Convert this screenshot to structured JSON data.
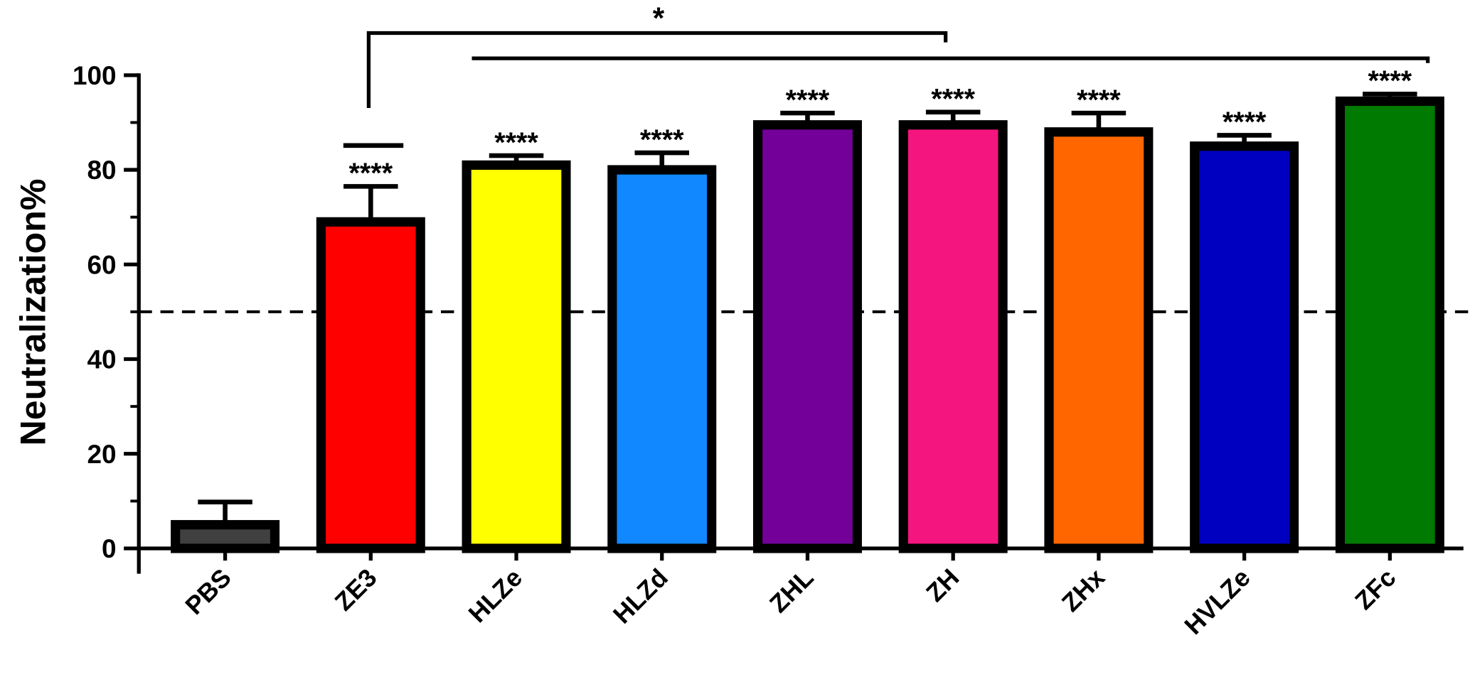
{
  "chart_data": {
    "type": "bar",
    "y_label": "Neutralization%",
    "categories": [
      "PBS",
      "ZE3",
      "HLZe",
      "HLZd",
      "ZHL",
      "ZH",
      "ZHx",
      "HVLZe",
      "ZFc"
    ],
    "values": [
      5,
      69,
      81,
      80,
      89.5,
      89.5,
      88,
      85,
      94.5
    ],
    "errors": [
      4.8,
      7.5,
      2,
      3.6,
      2.5,
      2.7,
      4,
      2.3,
      1.5
    ],
    "colors": [
      "#404040",
      "#ff0000",
      "#ffff00",
      "#1188ff",
      "#730099",
      "#f5157f",
      "#ff6600",
      "#0000c0",
      "#007a00"
    ],
    "annotations": [
      null,
      "****",
      "****",
      "****",
      "****",
      "****",
      "****",
      "****",
      "****"
    ],
    "comparison_label": "*",
    "reference_line": 50,
    "ylim": [
      0,
      100
    ],
    "yticks": [
      0,
      20,
      40,
      60,
      80,
      100
    ],
    "yminorticks": [
      10,
      30,
      50,
      70,
      90
    ]
  }
}
